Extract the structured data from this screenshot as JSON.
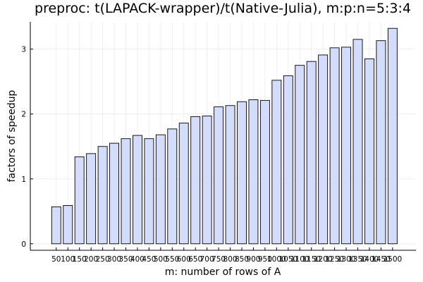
{
  "chart_data": {
    "type": "bar",
    "title": "preproc: t(LAPACK-wrapper)/t(Native-Julia), m:p:n=5:3:4",
    "xlabel": "m: number of rows of A",
    "ylabel": "factors of speedup",
    "categories": [
      "50",
      "100",
      "150",
      "200",
      "250",
      "300",
      "350",
      "400",
      "450",
      "500",
      "550",
      "600",
      "650",
      "700",
      "750",
      "800",
      "850",
      "900",
      "950",
      "1000",
      "1050",
      "1100",
      "1150",
      "1200",
      "1250",
      "1300",
      "1350",
      "1400",
      "1450",
      "1500"
    ],
    "values": [
      0.57,
      0.59,
      1.34,
      1.39,
      1.5,
      1.55,
      1.62,
      1.67,
      1.62,
      1.68,
      1.77,
      1.86,
      1.96,
      1.97,
      2.11,
      2.13,
      2.19,
      2.22,
      2.21,
      2.52,
      2.59,
      2.75,
      2.81,
      2.91,
      3.02,
      3.03,
      3.15,
      2.85,
      3.13,
      3.32
    ],
    "ylim": [
      -0.1,
      3.42
    ],
    "yticks": [
      0,
      1,
      2,
      3
    ],
    "grid": true,
    "legend": false,
    "colors": {
      "bar_fill": "#d3dcfa",
      "bar_stroke": "#000000",
      "grid": "#ebebeb",
      "axis": "#000000"
    }
  }
}
